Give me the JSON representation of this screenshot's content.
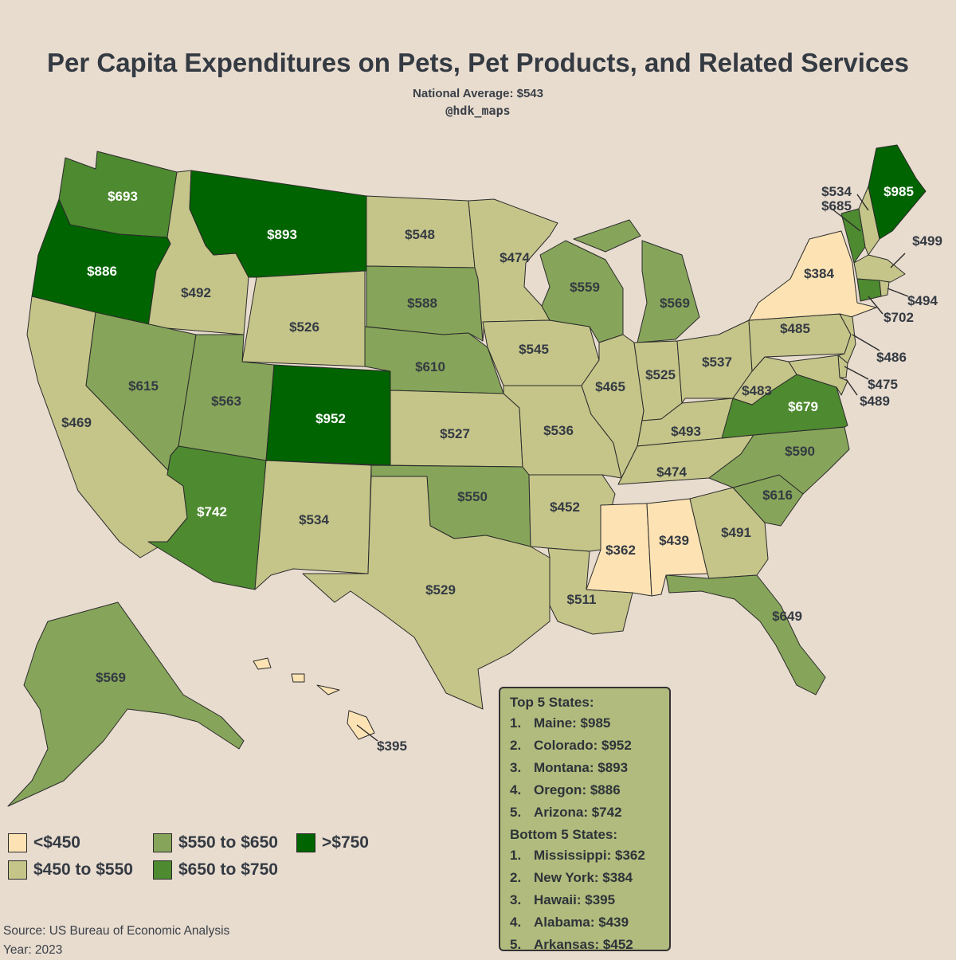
{
  "title": "Per Capita Expenditures on Pets, Pet Products, and Related Services",
  "subtitle": "National Average: $543",
  "handle": "@hdk_maps",
  "colors": {
    "background": "#e8dccf",
    "lt450": "#fde3b4",
    "450to550": "#c5c58a",
    "550to650": "#86a55a",
    "650to750": "#4e8a30",
    "gt750": "#006400"
  },
  "legend": {
    "items": [
      {
        "label": "<$450",
        "color": "#fde3b4"
      },
      {
        "label": "$450 to $550",
        "color": "#c5c58a"
      },
      {
        "label": "$550 to $650",
        "color": "#86a55a"
      },
      {
        "label": "$650 to $750",
        "color": "#4e8a30"
      },
      {
        "label": ">$750",
        "color": "#006400"
      }
    ]
  },
  "states": {
    "WA": "$693",
    "OR": "$886",
    "CA": "$469",
    "ID": "$492",
    "NV": "$615",
    "MT": "$893",
    "WY": "$526",
    "UT": "$563",
    "AZ": "$742",
    "CO": "$952",
    "NM": "$534",
    "ND": "$548",
    "SD": "$588",
    "NE": "$610",
    "KS": "$527",
    "OK": "$550",
    "TX": "$529",
    "MN": "$474",
    "IA": "$545",
    "MO": "$536",
    "AR": "$452",
    "LA": "$511",
    "WI": "$559",
    "IL": "$465",
    "MI": "$569",
    "IN": "$525",
    "OH": "$537",
    "KY": "$493",
    "TN": "$474",
    "MS": "$362",
    "AL": "$439",
    "GA": "$491",
    "FL": "$649",
    "SC": "$616",
    "NC": "$590",
    "VA": "$679",
    "WV": "$483",
    "PA": "$485",
    "NY": "$384",
    "VT": "$685",
    "NH": "$534",
    "ME": "$985",
    "MA": "$499",
    "RI": "$494",
    "CT": "$702",
    "NJ": "$486",
    "DE": "$475",
    "MD": "$489",
    "AK": "$569",
    "HI": "$395"
  },
  "top5": {
    "heading": "Top 5 States:",
    "items": [
      {
        "rank": "1.",
        "text": "Maine: $985"
      },
      {
        "rank": "2.",
        "text": "Colorado: $952"
      },
      {
        "rank": "3.",
        "text": "Montana: $893"
      },
      {
        "rank": "4.",
        "text": "Oregon: $886"
      },
      {
        "rank": "5.",
        "text": "Arizona: $742"
      }
    ]
  },
  "bottom5": {
    "heading": "Bottom 5 States:",
    "items": [
      {
        "rank": "1.",
        "text": "Mississippi: $362"
      },
      {
        "rank": "2.",
        "text": "New York: $384"
      },
      {
        "rank": "3.",
        "text": "Hawaii: $395"
      },
      {
        "rank": "4.",
        "text": "Alabama: $439"
      },
      {
        "rank": "5.",
        "text": "Arkansas: $452"
      }
    ]
  },
  "source": "Source: US Bureau of Economic Analysis",
  "year": "Year: 2023"
}
